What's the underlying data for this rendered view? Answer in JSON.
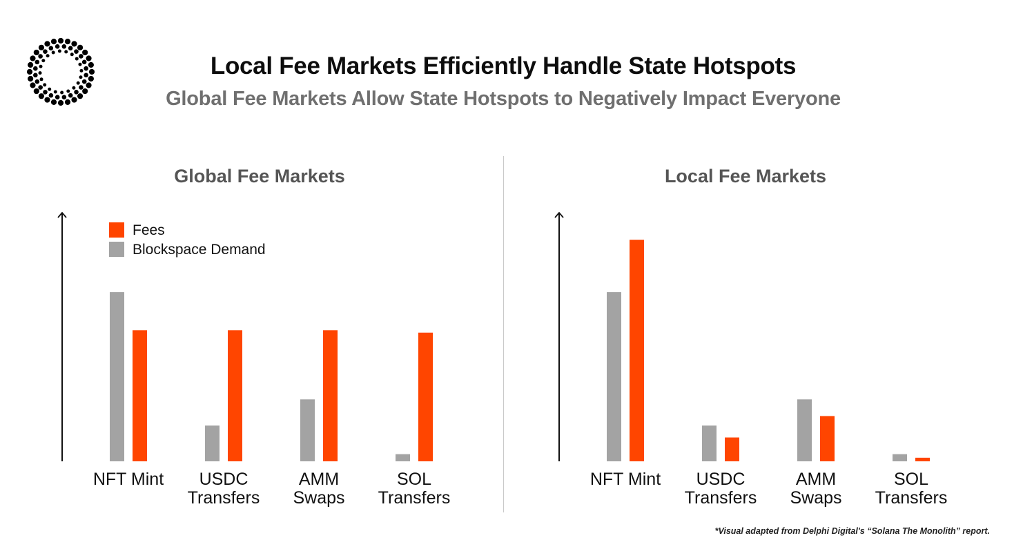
{
  "title": "Local Fee Markets Efficiently Handle State Hotspots",
  "subtitle": "Global Fee Markets Allow State Hotspots to Negatively Impact Everyone",
  "footnote": "*Visual adapted from Delphi Digital's “Solana The Monolith” report.",
  "colors": {
    "fees": "#ff4500",
    "demand": "#a3a3a3",
    "axis": "#111111"
  },
  "icons": {
    "logo": "dotted-ring-logo-icon"
  },
  "chart_data": [
    {
      "type": "bar",
      "title": "Global Fee Markets",
      "categories": [
        [
          "NFT Mint"
        ],
        [
          "USDC",
          "Transfers"
        ],
        [
          "AMM",
          "Swaps"
        ],
        [
          "SOL",
          "Transfers"
        ]
      ],
      "legend": {
        "placement": "top-left",
        "entries": [
          "Fees",
          "Blockspace Demand"
        ]
      },
      "series": [
        {
          "name": "Blockspace Demand",
          "color_key": "demand",
          "values": [
            71,
            15,
            26,
            3
          ]
        },
        {
          "name": "Fees",
          "color_key": "fees",
          "values": [
            55,
            55,
            55,
            54
          ]
        }
      ],
      "ylim": [
        0,
        100
      ],
      "grid": false
    },
    {
      "type": "bar",
      "title": "Local Fee Markets",
      "categories": [
        [
          "NFT Mint"
        ],
        [
          "USDC",
          "Transfers"
        ],
        [
          "AMM",
          "Swaps"
        ],
        [
          "SOL",
          "Transfers"
        ]
      ],
      "series": [
        {
          "name": "Blockspace Demand",
          "color_key": "demand",
          "values": [
            71,
            15,
            26,
            3
          ]
        },
        {
          "name": "Fees",
          "color_key": "fees",
          "values": [
            93,
            10,
            19,
            1.5
          ]
        }
      ],
      "ylim": [
        0,
        100
      ],
      "grid": false
    }
  ]
}
